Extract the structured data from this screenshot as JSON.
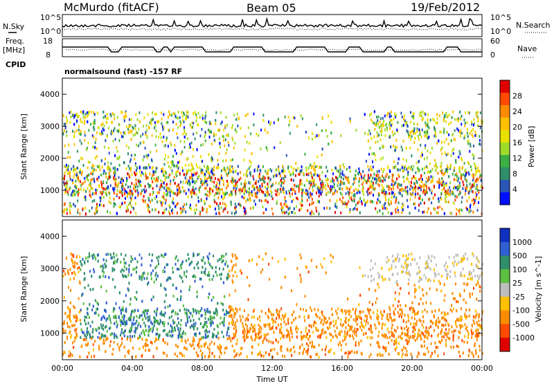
{
  "header": {
    "station": "McMurdo (fitACF)",
    "beam": "Beam 05",
    "date": "19/Feb/2012"
  },
  "noise_panel": {
    "left_label": "N.Sky",
    "right_label": "N.Search",
    "left_ticks": [
      "10^5",
      "10^0"
    ],
    "right_ticks": [
      "10^5",
      "10^0"
    ]
  },
  "freq_panel": {
    "left_label_1": "Freq.",
    "left_label_2": "[MHz]",
    "right_label": "Nave",
    "left_ticks": [
      "18",
      "8"
    ],
    "right_ticks": [
      "60",
      "0"
    ]
  },
  "cpid": {
    "label": "CPID",
    "text": "normalsound (fast) -157 RF"
  },
  "chart_data": [
    {
      "type": "heatmap",
      "panel": "power",
      "ylabel": "Slant Range [km]",
      "xlabel": "",
      "yticks": [
        1000,
        2000,
        3000,
        4000
      ],
      "ylim": [
        180,
        4500
      ],
      "colorbar": {
        "label": "Power [dB]",
        "ticks": [
          "28",
          "24",
          "20",
          "16",
          "12",
          "8",
          "4"
        ],
        "colors": [
          "#e00000",
          "#ff4a00",
          "#ff8c00",
          "#ffc000",
          "#e8e000",
          "#9fdc2a",
          "#3cb043",
          "#2f8f6a",
          "#2a56b8",
          "#0010ff"
        ]
      },
      "features": [
        "Strong near-range scatter 00:00–01:00",
        "Oblique bands 00:30–10:00 from ~800 to 3500 km",
        "Broad echoes 1000–1800 km from 08:00 to 24:00",
        "Sparse scatter 2800–3500 km from 18:00 to 22:00"
      ]
    },
    {
      "type": "heatmap",
      "panel": "velocity",
      "ylabel": "Slant Range [km]",
      "xlabel": "Time UT",
      "yticks": [
        1000,
        2000,
        3000,
        4000
      ],
      "ylim": [
        180,
        4500
      ],
      "xticks": [
        "00:00",
        "04:00",
        "08:00",
        "12:00",
        "16:00",
        "20:00",
        "00:00"
      ],
      "colorbar": {
        "label": "Velocity [m s^-1]",
        "ticks": [
          "1000",
          "500",
          "100",
          "25",
          "-25",
          "-100",
          "-500",
          "-1000"
        ],
        "colors": [
          "#1030c0",
          "#2f5fd0",
          "#2f8f6a",
          "#5cc040",
          "#bdbdbd",
          "#ffc000",
          "#ff8c00",
          "#ff4a00",
          "#e00000"
        ]
      },
      "features": [
        "Orange (negative) near-range 00:00–01:00",
        "Green/blue positive bands 01:00–09:00",
        "Orange negative echoes 1000–2000 km 09:00–24:00",
        "Grey low-velocity scatter near 3000 km 18:00–22:00"
      ]
    }
  ]
}
